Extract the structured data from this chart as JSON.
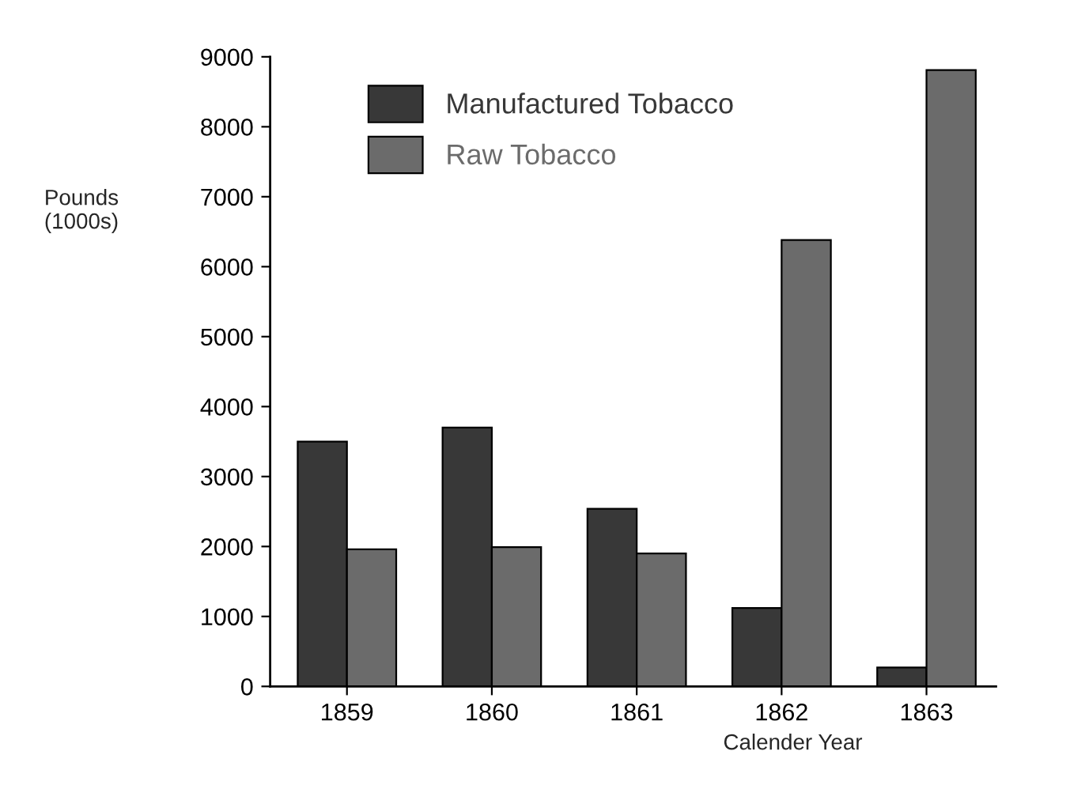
{
  "chart_data": {
    "type": "bar",
    "xlabel": "Calender Year",
    "ylabel": "Pounds\n(1000s)",
    "categories": [
      "1859",
      "1860",
      "1861",
      "1862",
      "1863"
    ],
    "series": [
      {
        "name": "Manufactured Tobacco",
        "color": "#383838",
        "values": [
          3500,
          3700,
          2540,
          1120,
          270
        ]
      },
      {
        "name": "Raw Tobacco",
        "color": "#6b6b6b",
        "values": [
          1960,
          1990,
          1900,
          6380,
          8810
        ]
      }
    ],
    "ylim": [
      0,
      9000
    ],
    "yticks": [
      0,
      1000,
      2000,
      3000,
      4000,
      5000,
      6000,
      7000,
      8000,
      9000
    ],
    "grid": false,
    "legend": "top left"
  }
}
